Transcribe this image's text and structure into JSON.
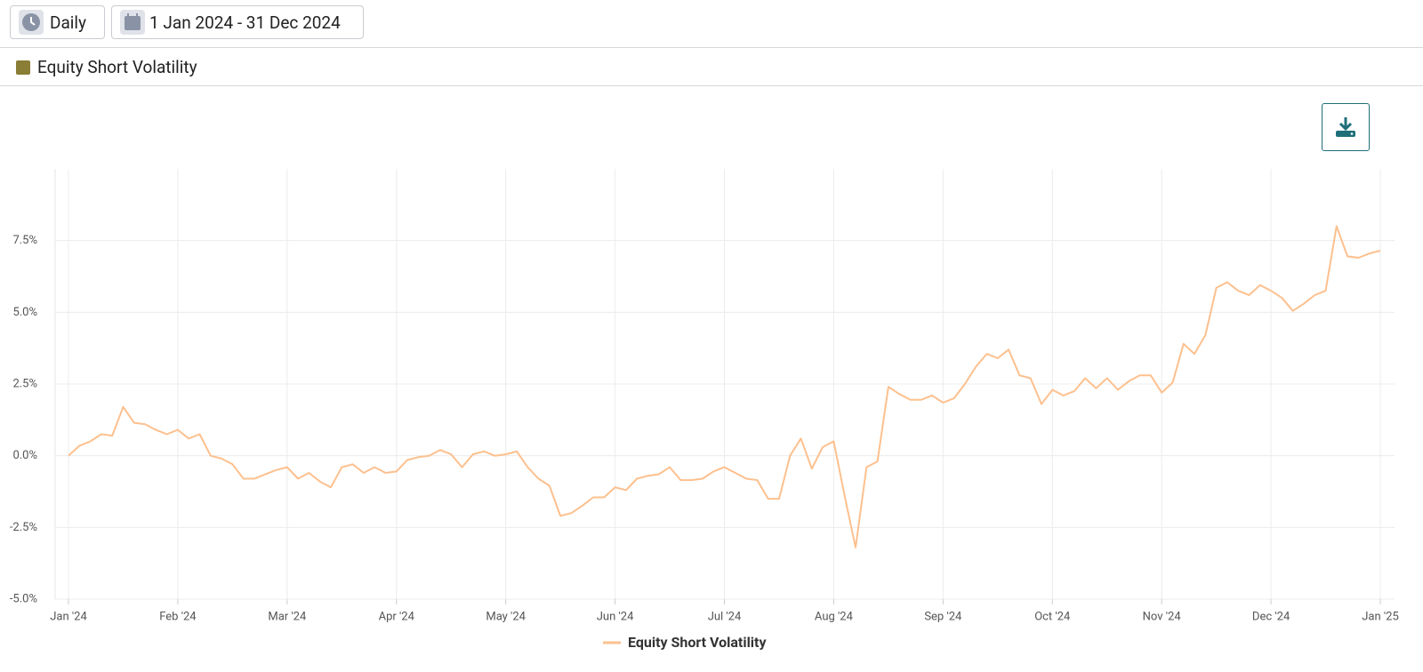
{
  "toolbar": {
    "interval": "Daily",
    "date_range": "1 Jan 2024 - 31 Dec 2024"
  },
  "series_panel": {
    "name": "Equity Short Volatility",
    "color": "#8a7d35"
  },
  "chart_data": {
    "type": "line",
    "categories": [
      "Jan '24",
      null,
      null,
      null,
      null,
      null,
      null,
      null,
      null,
      null,
      "Feb '24",
      null,
      null,
      null,
      null,
      null,
      null,
      null,
      null,
      null,
      "Mar '24",
      null,
      null,
      null,
      null,
      null,
      null,
      null,
      null,
      null,
      "Apr '24",
      null,
      null,
      null,
      null,
      null,
      null,
      null,
      null,
      null,
      "May '24",
      null,
      null,
      null,
      null,
      null,
      null,
      null,
      null,
      null,
      "Jun '24",
      null,
      null,
      null,
      null,
      null,
      null,
      null,
      null,
      null,
      "Jul '24",
      null,
      null,
      null,
      null,
      null,
      null,
      null,
      null,
      null,
      "Aug '24",
      null,
      null,
      null,
      null,
      null,
      null,
      null,
      null,
      null,
      "Sep '24",
      null,
      null,
      null,
      null,
      null,
      null,
      null,
      null,
      null,
      "Oct '24",
      null,
      null,
      null,
      null,
      null,
      null,
      null,
      null,
      null,
      "Nov '24",
      null,
      null,
      null,
      null,
      null,
      null,
      null,
      null,
      null,
      "Dec '24",
      null,
      null,
      null,
      null,
      null,
      null,
      null,
      null,
      null,
      "Jan '25"
    ],
    "series": [
      {
        "name": "Equity Short Volatility",
        "color": "#fdc08e",
        "values": [
          0.0,
          0.35,
          0.5,
          0.75,
          0.7,
          1.7,
          1.15,
          1.1,
          0.9,
          0.75,
          0.9,
          0.6,
          0.75,
          0.0,
          -0.1,
          -0.3,
          -0.8,
          -0.8,
          -0.65,
          -0.5,
          -0.4,
          -0.8,
          -0.6,
          -0.9,
          -1.1,
          -0.4,
          -0.3,
          -0.6,
          -0.4,
          -0.6,
          -0.55,
          -0.15,
          -0.05,
          0.0,
          0.2,
          0.05,
          -0.4,
          0.05,
          0.15,
          0.0,
          0.05,
          0.15,
          -0.4,
          -0.8,
          -1.05,
          -2.1,
          -2.0,
          -1.75,
          -1.45,
          -1.45,
          -1.1,
          -1.2,
          -0.8,
          -0.7,
          -0.65,
          -0.4,
          -0.85,
          -0.85,
          -0.8,
          -0.55,
          -0.4,
          -0.6,
          -0.8,
          -0.85,
          -1.5,
          -1.5,
          0.0,
          0.6,
          -0.45,
          0.3,
          0.5,
          -1.4,
          -3.2,
          -0.4,
          -0.2,
          2.4,
          2.15,
          1.95,
          1.95,
          2.1,
          1.85,
          2.0,
          2.5,
          3.1,
          3.55,
          3.4,
          3.7,
          2.8,
          2.7,
          1.8,
          2.3,
          2.1,
          2.25,
          2.7,
          2.35,
          2.7,
          2.3,
          2.6,
          2.8,
          2.8,
          2.2,
          2.55,
          3.9,
          3.55,
          4.2,
          5.85,
          6.05,
          5.75,
          5.6,
          5.95,
          5.75,
          5.5,
          5.05,
          5.3,
          5.6,
          5.75,
          8.0,
          6.95,
          6.9,
          7.05,
          7.15
        ]
      }
    ],
    "ylim": [
      -5,
      10
    ],
    "yticks": [
      {
        "value": -5,
        "label": "-5.0%"
      },
      {
        "value": -2.5,
        "label": "-2.5%"
      },
      {
        "value": 0,
        "label": "0.0%"
      },
      {
        "value": 2.5,
        "label": "2.5%"
      },
      {
        "value": 5,
        "label": "5.0%"
      },
      {
        "value": 7.5,
        "label": "7.5%"
      }
    ],
    "grid": true,
    "legend": "bottom"
  }
}
